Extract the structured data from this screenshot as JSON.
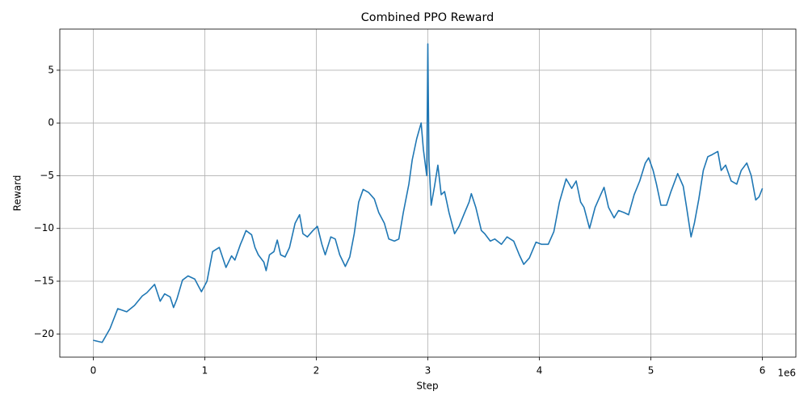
{
  "chart_data": {
    "type": "line",
    "title": "Combined PPO Reward",
    "x_label": "Step",
    "y_label": "Reward",
    "x_offset_label": "1e6",
    "color": "#1f77b4",
    "grid": true,
    "xlim": [
      -300000,
      6300000
    ],
    "ylim": [
      -22.2,
      8.9
    ],
    "xticks": [
      0,
      {
        "value": 1000000,
        "label": "1"
      },
      {
        "value": 2000000,
        "label": "2"
      },
      {
        "value": 3000000,
        "label": "3"
      },
      {
        "value": 4000000,
        "label": "4"
      },
      {
        "value": 5000000,
        "label": "5"
      },
      {
        "value": 6000000,
        "label": "6"
      }
    ],
    "yticks": [
      {
        "value": -20,
        "label": "−20"
      },
      {
        "value": -15,
        "label": "−15"
      },
      {
        "value": -10,
        "label": "−10"
      },
      {
        "value": -5,
        "label": "−5"
      },
      0,
      5
    ],
    "x": [
      0,
      80000,
      150000,
      220000,
      300000,
      370000,
      440000,
      480000,
      550000,
      600000,
      640000,
      690000,
      720000,
      750000,
      800000,
      850000,
      910000,
      950000,
      970000,
      1020000,
      1070000,
      1130000,
      1190000,
      1240000,
      1270000,
      1320000,
      1340000,
      1370000,
      1420000,
      1450000,
      1480000,
      1530000,
      1550000,
      1580000,
      1620000,
      1650000,
      1680000,
      1720000,
      1760000,
      1810000,
      1850000,
      1880000,
      1920000,
      1970000,
      2010000,
      2050000,
      2080000,
      2130000,
      2170000,
      2210000,
      2260000,
      2300000,
      2340000,
      2380000,
      2420000,
      2470000,
      2520000,
      2560000,
      2610000,
      2650000,
      2700000,
      2740000,
      2780000,
      2830000,
      2860000,
      2900000,
      2940000,
      2960000,
      2990000,
      3000000,
      3010000,
      3030000,
      3060000,
      3090000,
      3120000,
      3150000,
      3190000,
      3240000,
      3280000,
      3330000,
      3370000,
      3390000,
      3430000,
      3480000,
      3510000,
      3560000,
      3600000,
      3660000,
      3710000,
      3770000,
      3820000,
      3860000,
      3910000,
      3970000,
      4020000,
      4080000,
      4130000,
      4180000,
      4240000,
      4290000,
      4330000,
      4370000,
      4400000,
      4450000,
      4500000,
      4550000,
      4580000,
      4620000,
      4670000,
      4710000,
      4760000,
      4800000,
      4850000,
      4900000,
      4950000,
      4980000,
      5020000,
      5050000,
      5090000,
      5140000,
      5180000,
      5240000,
      5290000,
      5320000,
      5360000,
      5390000,
      5430000,
      5470000,
      5510000,
      5550000,
      5600000,
      5630000,
      5670000,
      5720000,
      5770000,
      5810000,
      5860000,
      5900000,
      5940000,
      5970000,
      6000000
    ],
    "values": [
      -20.6,
      -20.8,
      -19.5,
      -17.6,
      -17.9,
      -17.3,
      -16.4,
      -16.1,
      -15.3,
      -16.9,
      -16.2,
      -16.5,
      -17.5,
      -16.7,
      -14.9,
      -14.5,
      -14.8,
      -15.6,
      -16.0,
      -15.0,
      -12.2,
      -11.8,
      -13.7,
      -12.6,
      -13.0,
      -11.5,
      -11.0,
      -10.2,
      -10.6,
      -11.8,
      -12.5,
      -13.2,
      -14.0,
      -12.5,
      -12.2,
      -11.1,
      -12.5,
      -12.7,
      -11.8,
      -9.5,
      -8.7,
      -10.5,
      -10.8,
      -10.2,
      -9.8,
      -11.5,
      -12.5,
      -10.8,
      -11.0,
      -12.5,
      -13.6,
      -12.7,
      -10.5,
      -7.5,
      -6.3,
      -6.6,
      -7.2,
      -8.5,
      -9.5,
      -11.0,
      -11.2,
      -11.0,
      -8.5,
      -5.8,
      -3.5,
      -1.5,
      0.0,
      -2.5,
      -5.0,
      7.5,
      -3.5,
      -7.8,
      -6.0,
      -4.0,
      -6.8,
      -6.5,
      -8.5,
      -10.5,
      -9.8,
      -8.5,
      -7.5,
      -6.7,
      -8.0,
      -10.2,
      -10.5,
      -11.2,
      -11.0,
      -11.5,
      -10.8,
      -11.2,
      -12.5,
      -13.4,
      -12.8,
      -11.3,
      -11.5,
      -11.5,
      -10.3,
      -7.5,
      -5.3,
      -6.2,
      -5.5,
      -7.5,
      -8.0,
      -10.0,
      -8.0,
      -6.8,
      -6.1,
      -8.0,
      -9.0,
      -8.3,
      -8.5,
      -8.7,
      -6.8,
      -5.5,
      -3.8,
      -3.3,
      -4.5,
      -5.8,
      -7.8,
      -7.8,
      -6.5,
      -4.8,
      -6.0,
      -8.0,
      -10.8,
      -9.5,
      -7.2,
      -4.5,
      -3.2,
      -3.0,
      -2.7,
      -4.5,
      -4.0,
      -5.5,
      -5.8,
      -4.5,
      -3.8,
      -5.0,
      -7.3,
      -7.0,
      -6.2
    ]
  }
}
